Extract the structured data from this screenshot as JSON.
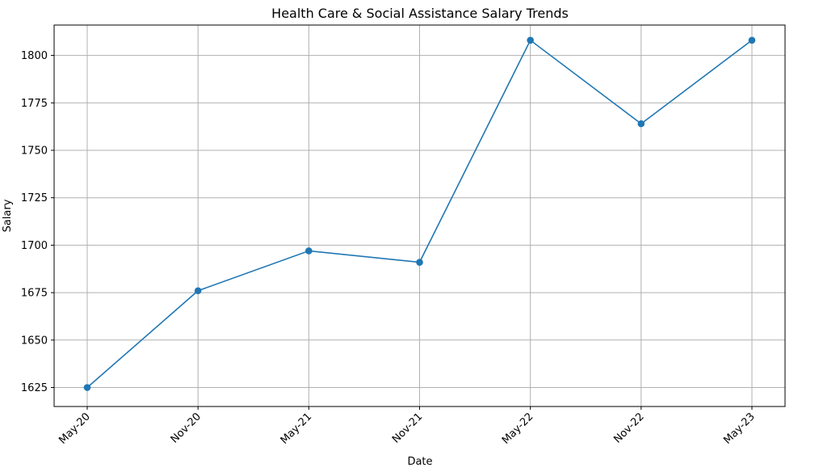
{
  "chart_data": {
    "type": "line",
    "title": "Health Care & Social Assistance Salary Trends",
    "xlabel": "Date",
    "ylabel": "Salary",
    "categories": [
      "May-20",
      "Nov-20",
      "May-21",
      "Nov-21",
      "May-22",
      "Nov-22",
      "May-23"
    ],
    "series": [
      {
        "values": [
          1625,
          1676,
          1697,
          1691,
          1808,
          1764,
          1808
        ]
      }
    ],
    "yticks": [
      1625,
      1650,
      1675,
      1700,
      1725,
      1750,
      1775,
      1800
    ],
    "ylim": [
      1615,
      1816
    ],
    "grid": true,
    "line_color": "#1f77b4"
  }
}
